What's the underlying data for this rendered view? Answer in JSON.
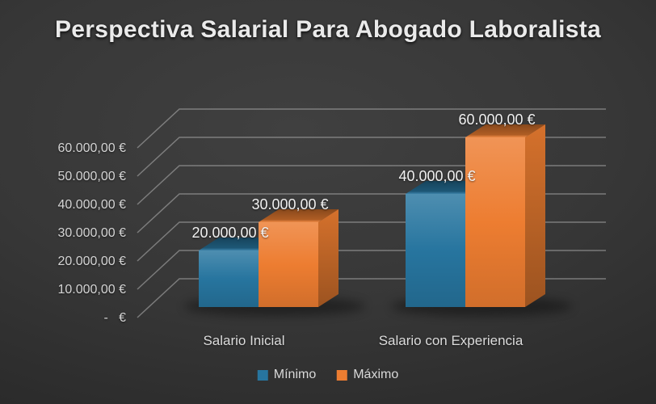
{
  "chart_data": {
    "type": "bar",
    "projection": "3d",
    "title": "Perspectiva Salarial Para Abogado Laboralista",
    "categories": [
      "Salario Inicial",
      "Salario con Experiencia"
    ],
    "series": [
      {
        "name": "Mínimo",
        "color": "#27759f",
        "values": [
          20000,
          40000
        ],
        "data_labels": [
          "20.000,00 €",
          "40.000,00 €"
        ]
      },
      {
        "name": "Máximo",
        "color": "#ed7d31",
        "values": [
          30000,
          60000
        ],
        "data_labels": [
          "30.000,00 €",
          "60.000,00 €"
        ]
      }
    ],
    "y_axis": {
      "min": 0,
      "max": 60000,
      "step": 10000,
      "tick_labels": [
        "60.000,00 €",
        "50.000,00 €",
        "40.000,00 €",
        "30.000,00 €",
        "20.000,00 €",
        "10.000,00 €",
        "-   €"
      ]
    },
    "grid": true,
    "legend_position": "bottom"
  },
  "colors": {
    "grid_line": "#b4b4b4",
    "title_text": "#eaeaea",
    "axis_text": "#d5d5d5",
    "category_text": "#dcdcdc",
    "data_label_text": "#f1f1f1"
  }
}
